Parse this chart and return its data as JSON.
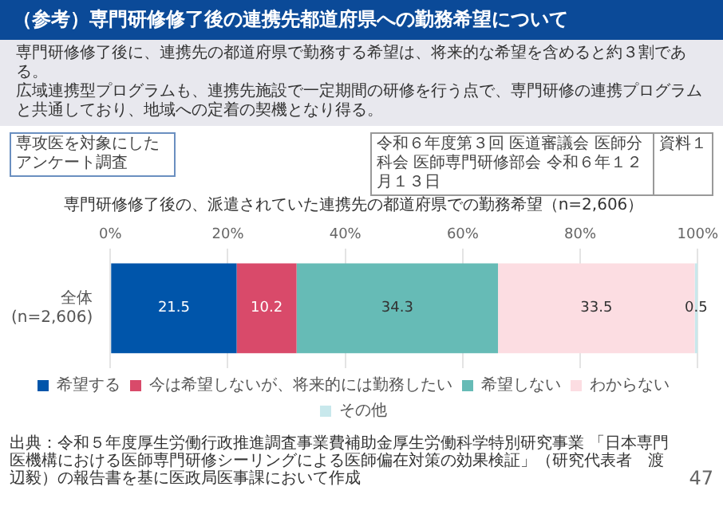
{
  "chart_data": {
    "type": "bar",
    "orientation": "horizontal",
    "stacked": true,
    "title": "（参考）専門研修修了後の連携先都道府県への勤務希望について",
    "subtitle": "専門研修修了後の、派遣されていた連携先の都道府県での勤務希望（n=2,606）",
    "annotations": [
      "専門研修修了後に、連携先の都道府県で勤務する希望は、将来的な希望を含めると約３割である。",
      "広域連携型プログラムも、連携先施設で一定期間の研修を行う点で、専門研修の連携プログラムと共通しており、地域への定着の契機となり得る。",
      "専攻医を対象にしたアンケート調査",
      "令和６年度第３回 医道審議会 医師分科会 医師専門研修部会 令和６年１２月１３日",
      "資料１",
      "出典：令和５年度厚生労働行政推進調査事業費補助金厚生労働科学特別研究事業 「日本専門医機構における医師専門研修シーリングによる医師偏在対策の効果検証」（研究代表者　渡辺毅）の報告書を基に医政局医事課において作成",
      "47"
    ],
    "categories": [
      "全体\n(n=2,606)"
    ],
    "series": [
      {
        "name": "希望する",
        "color": "#0055aa",
        "values": [
          21.5
        ]
      },
      {
        "name": "今は希望しないが、将来的には勤務したい",
        "color": "#d94a6a",
        "values": [
          10.2
        ]
      },
      {
        "name": "希望しない",
        "color": "#66bbb6",
        "values": [
          34.3
        ]
      },
      {
        "name": "わからない",
        "color": "#fcdde2",
        "values": [
          33.5
        ]
      },
      {
        "name": "その他",
        "color": "#c8e8ec",
        "values": [
          0.5
        ]
      }
    ],
    "xlim": [
      0,
      100
    ],
    "xticks": [
      {
        "value": 0,
        "label": "0%"
      },
      {
        "value": 20,
        "label": "20%"
      },
      {
        "value": 40,
        "label": "40%"
      },
      {
        "value": 60,
        "label": "60%"
      },
      {
        "value": 80,
        "label": "80%"
      },
      {
        "value": 100,
        "label": "100%"
      }
    ],
    "grid": "x",
    "legend": "bottom",
    "data_labels": true
  }
}
